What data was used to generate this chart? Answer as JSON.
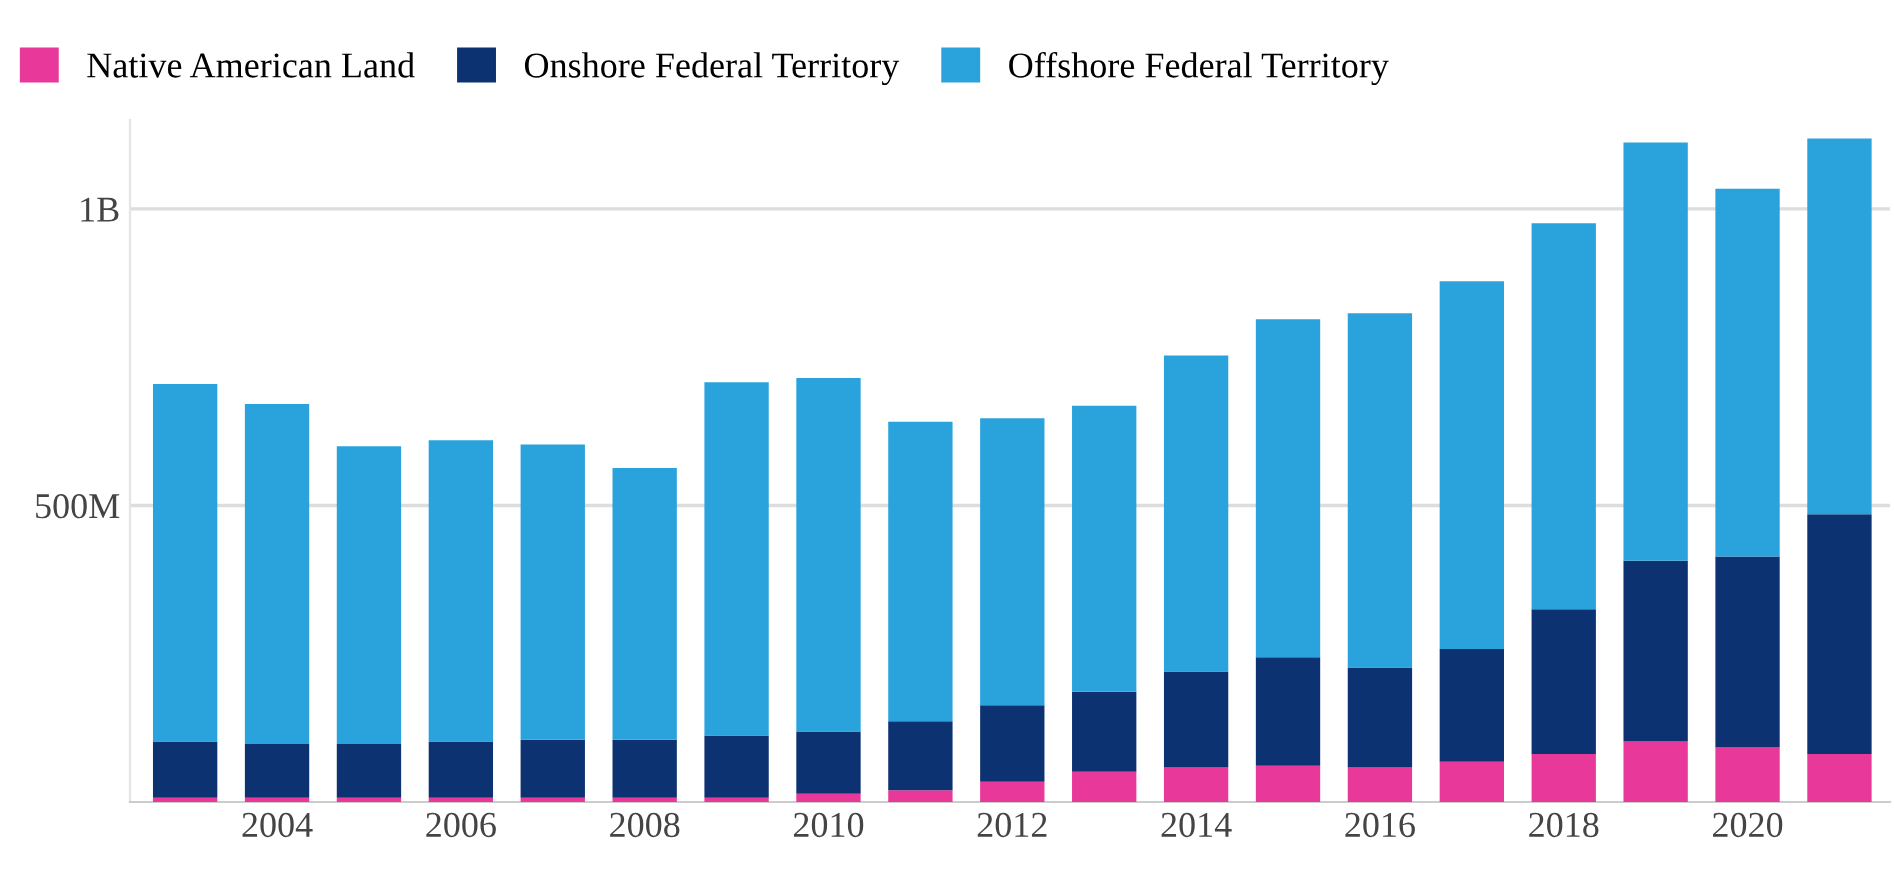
{
  "chart_data": {
    "type": "bar",
    "stacked": true,
    "categories": [
      null,
      "2004",
      null,
      "2006",
      null,
      "2008",
      null,
      "2010",
      null,
      "2012",
      null,
      "2014",
      null,
      "2016",
      null,
      "2018",
      null,
      "2020",
      null
    ],
    "series": [
      {
        "name": "Native American Land",
        "color": "#e8399a",
        "values": [
          7000000,
          7000000,
          7000000,
          7000000,
          7000000,
          7000000,
          7000000,
          14000000,
          20000000,
          34000000,
          51000000,
          58000000,
          61000000,
          58000000,
          68000000,
          81000000,
          102000000,
          92000000,
          81000000
        ]
      },
      {
        "name": "Onshore Federal Territory",
        "color": "#0d3272",
        "values": [
          95000000,
          91000000,
          91000000,
          95000000,
          98000000,
          98000000,
          105000000,
          105000000,
          116000000,
          129000000,
          135000000,
          162000000,
          183000000,
          169000000,
          190000000,
          244000000,
          305000000,
          322000000,
          404000000
        ]
      },
      {
        "name": "Offshore Federal Territory",
        "color": "#2aa3dc",
        "values": [
          603000000,
          573000000,
          502000000,
          508000000,
          498000000,
          458000000,
          596000000,
          596000000,
          505000000,
          484000000,
          482000000,
          533000000,
          570000000,
          597000000,
          620000000,
          651000000,
          705000000,
          620000000,
          634000000
        ]
      }
    ],
    "ylim": [
      0,
      1150000000
    ],
    "yticks": [
      {
        "value": 500000000,
        "label": "500M"
      },
      {
        "value": 1000000000,
        "label": "1B"
      }
    ],
    "grid": "y",
    "legend": "top left"
  }
}
